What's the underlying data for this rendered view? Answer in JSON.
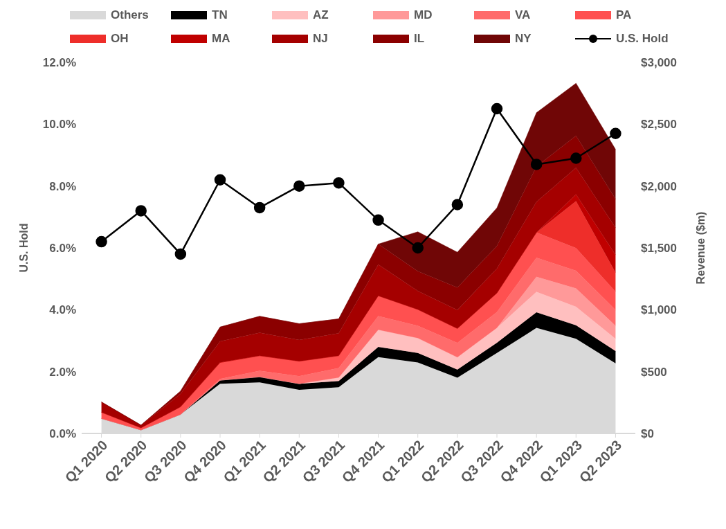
{
  "chart_data": {
    "type": "area",
    "stacked": true,
    "ylabel": "U.S. Hold",
    "y2label": "Revenue ($m)",
    "categories": [
      "Q1 2020",
      "Q2 2020",
      "Q3 2020",
      "Q4 2020",
      "Q1 2021",
      "Q2 2021",
      "Q3 2021",
      "Q4 2021",
      "Q1 2022",
      "Q2 2022",
      "Q3 2022",
      "Q4 2022",
      "Q1 2023",
      "Q2 2023"
    ],
    "series": [
      {
        "name": "Others",
        "color": "#d9d9d9",
        "axis": "y2",
        "values": [
          121,
          28,
          154,
          402,
          413,
          352,
          374,
          617,
          573,
          451,
          650,
          853,
          765,
          567
        ]
      },
      {
        "name": "TN",
        "color": "#000000",
        "axis": "y2",
        "values": [
          0,
          0,
          0,
          28,
          44,
          50,
          50,
          83,
          77,
          66,
          83,
          127,
          110,
          99
        ]
      },
      {
        "name": "AZ",
        "color": "#ffbfbf",
        "axis": "y2",
        "values": [
          0,
          0,
          0,
          0,
          0,
          0,
          28,
          138,
          121,
          99,
          121,
          165,
          149,
          99
        ]
      },
      {
        "name": "MD",
        "color": "#ff9999",
        "axis": "y2",
        "values": [
          0,
          0,
          0,
          0,
          0,
          0,
          0,
          0,
          0,
          0,
          0,
          121,
          149,
          105
        ]
      },
      {
        "name": "VA",
        "color": "#ff6b6b",
        "axis": "y2",
        "values": [
          0,
          0,
          0,
          11,
          50,
          61,
          77,
          110,
          99,
          116,
          127,
          154,
          143,
          127
        ]
      },
      {
        "name": "PA",
        "color": "#ff5050",
        "axis": "y2",
        "values": [
          50,
          17,
          61,
          132,
          121,
          121,
          99,
          165,
          132,
          116,
          154,
          204,
          182,
          149
        ]
      },
      {
        "name": "OH",
        "color": "#ee2e2a",
        "axis": "y2",
        "values": [
          0,
          0,
          0,
          0,
          0,
          0,
          0,
          0,
          0,
          0,
          0,
          0,
          380,
          154
        ]
      },
      {
        "name": "MA",
        "color": "#c00000",
        "axis": "y2",
        "values": [
          0,
          0,
          0,
          0,
          0,
          0,
          0,
          0,
          0,
          0,
          0,
          0,
          55,
          143
        ]
      },
      {
        "name": "NJ",
        "color": "#a50000",
        "axis": "y2",
        "values": [
          83,
          22,
          105,
          171,
          187,
          171,
          182,
          253,
          149,
          149,
          198,
          248,
          215,
          220
        ]
      },
      {
        "name": "IL",
        "color": "#8b0000",
        "axis": "y2",
        "values": [
          0,
          0,
          22,
          116,
          132,
          132,
          116,
          165,
          160,
          182,
          182,
          286,
          259,
          231
        ]
      },
      {
        "name": "NY",
        "color": "#700606",
        "axis": "y2",
        "values": [
          0,
          0,
          0,
          0,
          0,
          0,
          0,
          0,
          319,
          286,
          308,
          435,
          424,
          402
        ]
      },
      {
        "name": "U.S. Hold",
        "type": "line",
        "color": "#000000",
        "axis": "y",
        "marker": "circle",
        "values": [
          6.2,
          7.2,
          5.8,
          8.2,
          7.3,
          8.0,
          8.1,
          6.9,
          6.0,
          7.4,
          10.5,
          8.7,
          8.9,
          9.7
        ]
      }
    ],
    "ylim": [
      0,
      12
    ],
    "yticks": [
      {
        "value": 0,
        "label": "0.0%"
      },
      {
        "value": 2,
        "label": "2.0%"
      },
      {
        "value": 4,
        "label": "4.0%"
      },
      {
        "value": 6,
        "label": "6.0%"
      },
      {
        "value": 8,
        "label": "8.0%"
      },
      {
        "value": 10,
        "label": "10.0%"
      },
      {
        "value": 12,
        "label": "12.0%"
      }
    ],
    "y2lim": [
      0,
      3000
    ],
    "y2ticks": [
      {
        "value": 0,
        "label": "$0"
      },
      {
        "value": 500,
        "label": "$500"
      },
      {
        "value": 1000,
        "label": "$1,000"
      },
      {
        "value": 1500,
        "label": "$1,500"
      },
      {
        "value": 2000,
        "label": "$2,000"
      },
      {
        "value": 2500,
        "label": "$2,500"
      },
      {
        "value": 3000,
        "label": "$3,000"
      }
    ],
    "legend": "top"
  }
}
